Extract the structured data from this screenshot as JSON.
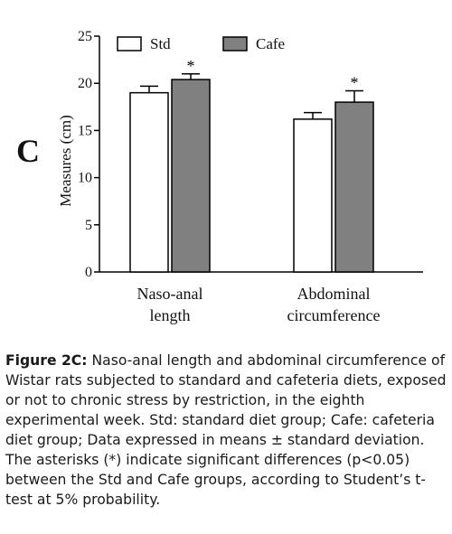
{
  "panel_letter": "C",
  "caption": {
    "label": "Figure 2C:",
    "text": "Naso-anal length and abdominal circumference of Wistar rats subjected to standard and cafeteria diets, exposed or not to chronic stress by restriction, in the eighth experimental week. Std: standard diet group; Cafe: cafeteria diet group; Data expressed in means ± standard deviation. The asterisks (*) indicate significant differences (p<0.05) between the Std and Cafe groups, according to Student’s t-test at 5% probability."
  },
  "chart_data": {
    "type": "bar",
    "title": "",
    "xlabel": "",
    "ylabel": "Measures (cm)",
    "ylim": [
      0,
      25
    ],
    "yticks": [
      "0",
      "5",
      "10",
      "15",
      "20",
      "25"
    ],
    "categories": [
      [
        "Naso-anal",
        "length"
      ],
      [
        "Abdominal",
        "circumference"
      ]
    ],
    "series": [
      {
        "name": "Std",
        "color": "#ffffff",
        "values": [
          19.0,
          16.2
        ],
        "errors": [
          0.7,
          0.7
        ]
      },
      {
        "name": "Cafe",
        "color": "#808080",
        "values": [
          20.4,
          18.0
        ],
        "errors": [
          0.6,
          1.2
        ]
      }
    ],
    "significance": [
      "*",
      "*"
    ],
    "legend_position": "top",
    "grid": false
  }
}
